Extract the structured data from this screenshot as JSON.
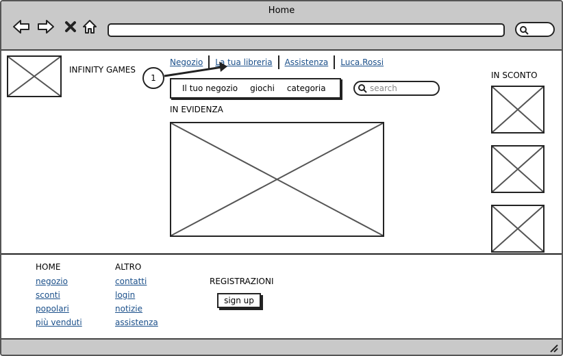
{
  "window": {
    "title": "Home"
  },
  "browser": {
    "icons": [
      "back-arrow-icon",
      "forward-arrow-icon",
      "close-icon",
      "home-icon",
      "search-icon"
    ],
    "url": ""
  },
  "header": {
    "brand": "INFINITY GAMES",
    "links": [
      "Negozio",
      "La tua libreria",
      "Assistenza",
      "Luca.Rossi"
    ],
    "callout": "1"
  },
  "subnav": {
    "items": [
      "Il tuo negozio",
      "giochi",
      "categoria"
    ]
  },
  "search": {
    "placeholder": "search"
  },
  "main": {
    "featured_title": "IN EVIDENZA",
    "sale_title": "IN SCONTO"
  },
  "footer": {
    "col1": {
      "title": "HOME",
      "links": [
        "negozio",
        "sconti",
        "popolari",
        "più venduti"
      ]
    },
    "col2": {
      "title": "ALTRO",
      "links": [
        "contatti",
        "login",
        "notizie",
        "assistenza"
      ]
    },
    "col3": {
      "title": "REGISTRAZIONI",
      "button": "sign up"
    }
  }
}
